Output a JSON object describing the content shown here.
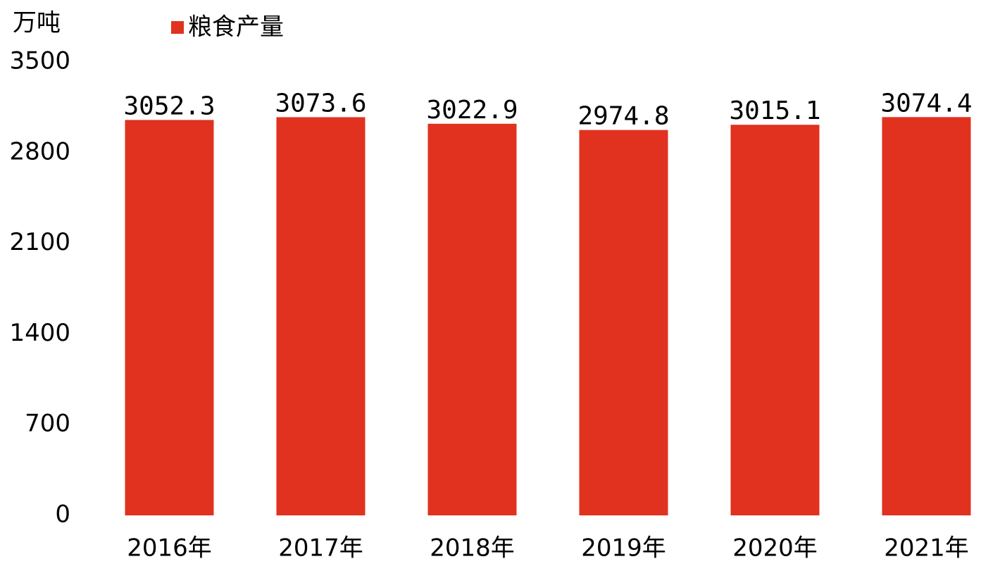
{
  "chart_data": {
    "type": "bar",
    "y_label": "万吨",
    "categories": [
      "2016年",
      "2017年",
      "2018年",
      "2019年",
      "2020年",
      "2021年"
    ],
    "series": [
      {
        "name": "粮食产量",
        "color": "#e0321f",
        "values": [
          3052.3,
          3073.6,
          3022.9,
          2974.8,
          3015.1,
          3074.4
        ]
      }
    ],
    "ylim": [
      0,
      3500
    ],
    "yticks": [
      0,
      700,
      1400,
      2100,
      2800,
      3500
    ],
    "grid": false,
    "legend": "top"
  }
}
